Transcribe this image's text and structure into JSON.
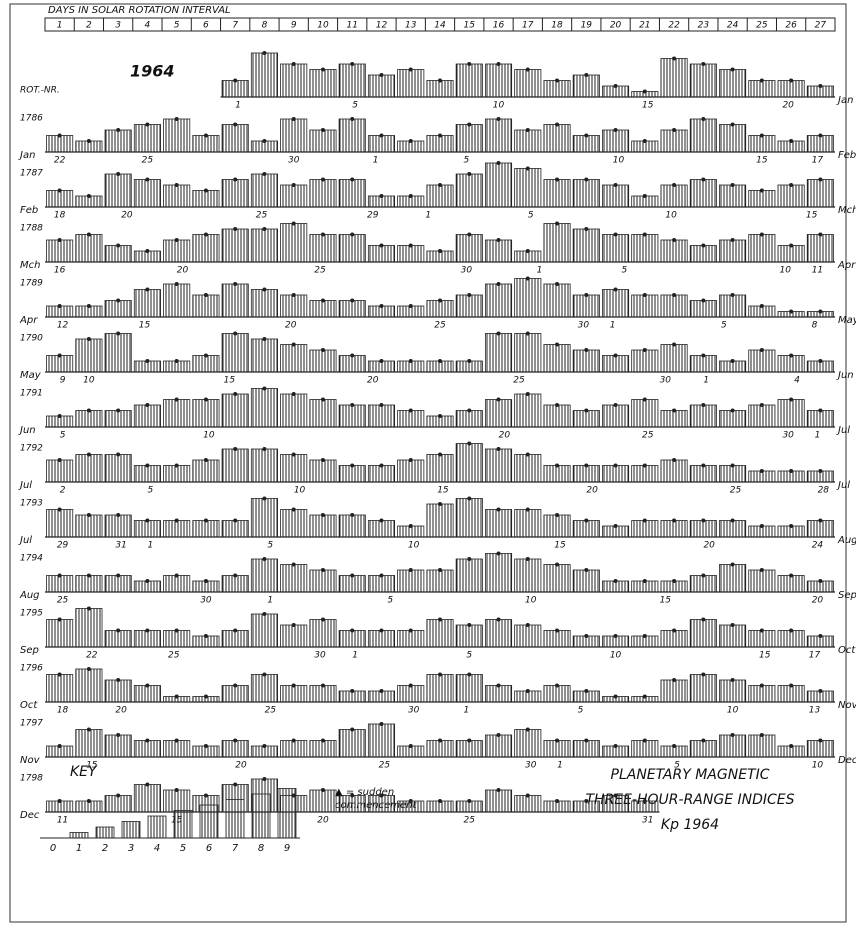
{
  "chart_data": {
    "type": "bartels",
    "header": "DAYS IN SOLAR ROTATION INTERVAL",
    "categories": [
      "1",
      "2",
      "3",
      "4",
      "5",
      "6",
      "7",
      "8",
      "9",
      "10",
      "11",
      "12",
      "13",
      "14",
      "15",
      "16",
      "17",
      "18",
      "19",
      "20",
      "21",
      "22",
      "23",
      "24",
      "25",
      "26",
      "27"
    ],
    "year": "1964",
    "rotation_header": "ROT.-NR.",
    "ylim": [
      0,
      9
    ],
    "color": "#222222",
    "rows": [
      {
        "end_month": "Jan",
        "date_labels": [
          "1",
          "5",
          "10",
          "15",
          "20"
        ],
        "date_x": [
          6.6,
          10.6,
          15.5,
          20.6,
          25.4
        ],
        "values": [
          null,
          null,
          null,
          null,
          null,
          null,
          3,
          8,
          6,
          5,
          6,
          4,
          5,
          3,
          6,
          6,
          5,
          3,
          4,
          2,
          1,
          7,
          6,
          5,
          3,
          3,
          2
        ]
      },
      {
        "rotation": "1786",
        "start_month": "Jan",
        "end_month": "Feb",
        "date_labels": [
          "22",
          "25",
          "30",
          "1",
          "5",
          "10",
          "15",
          "17"
        ],
        "date_x": [
          0.5,
          3.5,
          8.5,
          11.3,
          14.4,
          19.6,
          24.5,
          26.4
        ],
        "values": [
          3,
          2,
          4,
          5,
          6,
          3,
          5,
          2,
          6,
          4,
          6,
          3,
          2,
          3,
          5,
          6,
          4,
          5,
          3,
          4,
          2,
          4,
          6,
          5,
          3,
          2,
          3
        ]
      },
      {
        "rotation": "1787",
        "start_month": "Feb",
        "end_month": "Mch",
        "date_labels": [
          "18",
          "20",
          "25",
          "29",
          "1",
          "5",
          "10",
          "15"
        ],
        "date_x": [
          0.5,
          2.8,
          7.4,
          11.2,
          13.1,
          16.6,
          21.4,
          26.2
        ],
        "values": [
          3,
          2,
          6,
          5,
          4,
          3,
          5,
          6,
          4,
          5,
          5,
          2,
          2,
          4,
          6,
          8,
          7,
          5,
          5,
          4,
          2,
          4,
          5,
          4,
          3,
          4,
          5
        ]
      },
      {
        "rotation": "1788",
        "start_month": "Mch",
        "end_month": "Apr",
        "date_labels": [
          "16",
          "20",
          "25",
          "30",
          "1",
          "5",
          "10",
          "11"
        ],
        "date_x": [
          0.5,
          4.7,
          9.4,
          14.4,
          16.9,
          19.8,
          25.3,
          26.4
        ],
        "values": [
          4,
          5,
          3,
          2,
          4,
          5,
          6,
          6,
          7,
          5,
          5,
          3,
          3,
          2,
          5,
          4,
          2,
          7,
          6,
          5,
          5,
          4,
          3,
          4,
          5,
          3,
          5
        ]
      },
      {
        "rotation": "1789",
        "start_month": "Apr",
        "end_month": "May",
        "date_labels": [
          "12",
          "15",
          "20",
          "25",
          "30",
          "1",
          "5",
          "8"
        ],
        "date_x": [
          0.6,
          3.4,
          8.4,
          13.5,
          18.4,
          19.4,
          23.2,
          26.3
        ],
        "values": [
          2,
          2,
          3,
          5,
          6,
          4,
          6,
          5,
          4,
          3,
          3,
          2,
          2,
          3,
          4,
          6,
          7,
          6,
          4,
          5,
          4,
          4,
          3,
          4,
          2,
          1,
          1
        ]
      },
      {
        "rotation": "1790",
        "start_month": "May",
        "end_month": "Jun",
        "date_labels": [
          "9",
          "10",
          "15",
          "20",
          "25",
          "30",
          "1",
          "4"
        ],
        "date_x": [
          0.6,
          1.5,
          6.3,
          11.2,
          16.2,
          21.2,
          22.6,
          25.7
        ],
        "values": [
          3,
          6,
          7,
          2,
          2,
          3,
          7,
          6,
          5,
          4,
          3,
          2,
          2,
          2,
          2,
          7,
          7,
          5,
          4,
          3,
          4,
          5,
          3,
          2,
          4,
          3,
          2
        ]
      },
      {
        "rotation": "1791",
        "start_month": "Jun",
        "end_month": "Jul",
        "date_labels": [
          "5",
          "10",
          "20",
          "25",
          "30",
          "1"
        ],
        "date_x": [
          0.6,
          5.6,
          15.7,
          20.6,
          25.4,
          26.4
        ],
        "values": [
          2,
          3,
          3,
          4,
          5,
          5,
          6,
          7,
          6,
          5,
          4,
          4,
          3,
          2,
          3,
          5,
          6,
          4,
          3,
          4,
          5,
          3,
          4,
          3,
          4,
          5,
          3
        ]
      },
      {
        "rotation": "1792",
        "start_month": "Jul",
        "end_month": "Jul",
        "date_labels": [
          "2",
          "5",
          "10",
          "15",
          "20",
          "25",
          "28"
        ],
        "date_x": [
          0.6,
          3.6,
          8.7,
          13.6,
          18.7,
          23.6,
          26.6
        ],
        "values": [
          4,
          5,
          5,
          3,
          3,
          4,
          6,
          6,
          5,
          4,
          3,
          3,
          4,
          5,
          7,
          6,
          5,
          3,
          3,
          3,
          3,
          4,
          3,
          3,
          2,
          2,
          2
        ]
      },
      {
        "rotation": "1793",
        "start_month": "Jul",
        "end_month": "Aug",
        "date_labels": [
          "29",
          "31",
          "1",
          "5",
          "10",
          "15",
          "20",
          "24"
        ],
        "date_x": [
          0.6,
          2.6,
          3.6,
          7.7,
          12.6,
          17.6,
          22.7,
          26.4
        ],
        "values": [
          5,
          4,
          4,
          3,
          3,
          3,
          3,
          7,
          5,
          4,
          4,
          3,
          2,
          6,
          7,
          5,
          5,
          4,
          3,
          2,
          3,
          3,
          3,
          3,
          2,
          2,
          3
        ]
      },
      {
        "rotation": "1794",
        "start_month": "Aug",
        "end_month": "Sep",
        "date_labels": [
          "25",
          "30",
          "1",
          "5",
          "10",
          "15",
          "20"
        ],
        "date_x": [
          0.6,
          5.5,
          7.7,
          11.8,
          16.6,
          21.2,
          26.4
        ],
        "values": [
          3,
          3,
          3,
          2,
          3,
          2,
          3,
          6,
          5,
          4,
          3,
          3,
          4,
          4,
          6,
          7,
          6,
          5,
          4,
          2,
          2,
          2,
          3,
          5,
          4,
          3,
          2
        ]
      },
      {
        "rotation": "1795",
        "start_month": "Sep",
        "end_month": "Oct",
        "date_labels": [
          "22",
          "25",
          "30",
          "1",
          "5",
          "10",
          "15",
          "17"
        ],
        "date_x": [
          1.6,
          4.4,
          9.4,
          10.6,
          14.5,
          19.5,
          24.6,
          26.3
        ],
        "values": [
          5,
          7,
          3,
          3,
          3,
          2,
          3,
          6,
          4,
          5,
          3,
          3,
          3,
          5,
          4,
          5,
          4,
          3,
          2,
          2,
          2,
          3,
          5,
          4,
          3,
          3,
          2
        ]
      },
      {
        "rotation": "1796",
        "start_month": "Oct",
        "end_month": "Nov",
        "date_labels": [
          "18",
          "20",
          "25",
          "30",
          "1",
          "5",
          "10",
          "13"
        ],
        "date_x": [
          0.6,
          2.6,
          7.7,
          12.6,
          14.4,
          18.3,
          23.5,
          26.3
        ],
        "values": [
          5,
          6,
          4,
          3,
          1,
          1,
          3,
          5,
          3,
          3,
          2,
          2,
          3,
          5,
          5,
          3,
          2,
          3,
          2,
          1,
          1,
          4,
          5,
          4,
          3,
          3,
          2
        ]
      },
      {
        "rotation": "1797",
        "start_month": "Nov",
        "end_month": "Dec",
        "date_labels": [
          "15",
          "20",
          "25",
          "30",
          "1",
          "5",
          "10"
        ],
        "date_x": [
          1.6,
          6.7,
          11.6,
          16.6,
          17.6,
          21.6,
          26.4
        ],
        "values": [
          2,
          5,
          4,
          3,
          3,
          2,
          3,
          2,
          3,
          3,
          5,
          6,
          2,
          3,
          3,
          4,
          5,
          3,
          3,
          2,
          3,
          2,
          3,
          4,
          4,
          2,
          3
        ]
      },
      {
        "rotation": "1798",
        "start_month": "Dec",
        "date_labels": [
          "11",
          "15",
          "20",
          "25",
          "31"
        ],
        "date_x": [
          0.6,
          4.5,
          9.5,
          14.5,
          20.6
        ],
        "values": [
          2,
          2,
          3,
          5,
          4,
          3,
          5,
          6,
          3,
          4,
          3,
          3,
          2,
          2,
          2,
          4,
          3,
          2,
          2,
          3,
          2,
          null,
          null,
          null,
          null,
          null,
          null
        ]
      }
    ],
    "key": {
      "title": "KEY",
      "levels": [
        0,
        1,
        2,
        3,
        4,
        5,
        6,
        7,
        8,
        9
      ]
    },
    "sc_note": [
      "▲ = sudden",
      "commencement"
    ],
    "title_lines": [
      "PLANETARY MAGNETIC",
      "THREE-HOUR-RANGE INDICES",
      "Kp 1964"
    ]
  }
}
